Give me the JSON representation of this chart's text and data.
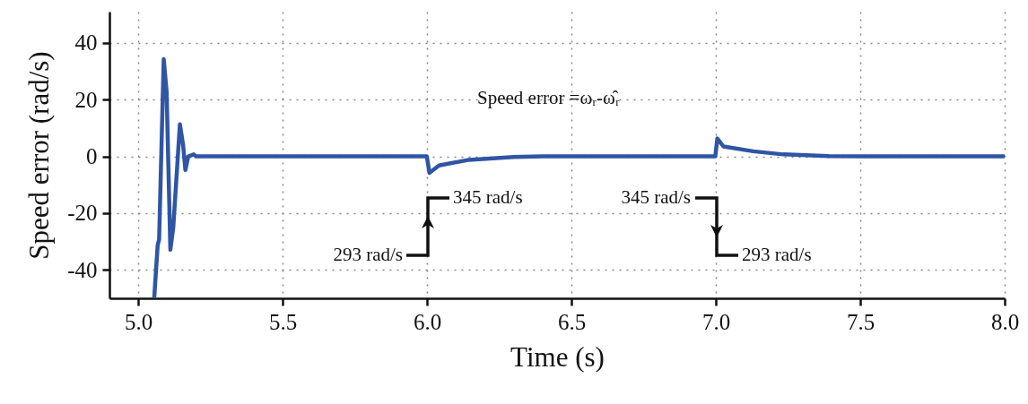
{
  "chart_data": {
    "type": "line",
    "xlabel": "Time (s)",
    "ylabel": "Speed error (rad/s)",
    "xlim": [
      4.9,
      8.0
    ],
    "xticks": [
      {
        "value": 5,
        "label": "5.0"
      },
      5.5,
      {
        "value": 6,
        "label": "6.0"
      },
      6.5,
      {
        "value": 7,
        "label": "7.0"
      },
      7.5,
      {
        "value": 8,
        "label": "8.0"
      }
    ],
    "ylim": [
      -50,
      51
    ],
    "yticks": [
      -40,
      -20,
      0,
      20,
      40
    ],
    "grid": true,
    "marker": "none",
    "line_style": "solid",
    "series": [
      {
        "color": "#2f55a4",
        "x": [
          5.055,
          5.067,
          5.072,
          5.088,
          5.098,
          5.111,
          5.121,
          5.144,
          5.155,
          5.163,
          5.173,
          5.192,
          5.2,
          5.5,
          5.999,
          6.008,
          6.041,
          6.145,
          6.3,
          6.4,
          6.7,
          6.998,
          7.005,
          7.026,
          7.129,
          7.233,
          7.39,
          7.5,
          8.0
        ],
        "values": [
          -50,
          -31.3,
          -29.3,
          34.3,
          22.8,
          -32.9,
          -25,
          11.3,
          4.1,
          -4.8,
          0,
          0.7,
          0,
          0,
          0,
          -5.8,
          -3.2,
          -1.2,
          -0.2,
          0,
          0,
          0,
          6.3,
          3.5,
          1.8,
          0.7,
          0.1,
          0,
          0
        ]
      }
    ],
    "annotations": [
      "Speed error =ωᵣ-ω̂ᵣ",
      "293 rad/s",
      "345 rad/s",
      "345 rad/s",
      "293 rad/s"
    ]
  }
}
